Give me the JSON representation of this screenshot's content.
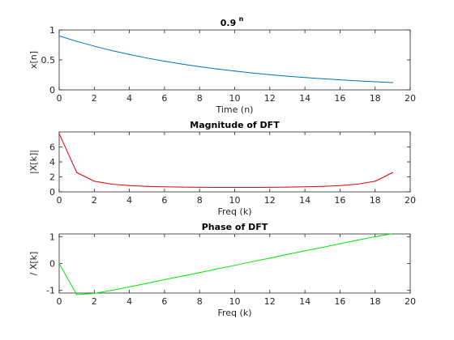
{
  "chart_data": [
    {
      "type": "line",
      "title": "0.9",
      "title_superscript": "n",
      "xlabel": "Time (n)",
      "ylabel": "x[n]",
      "xlim": [
        0,
        20
      ],
      "ylim": [
        0,
        1
      ],
      "xticks": [
        0,
        2,
        4,
        6,
        8,
        10,
        12,
        14,
        16,
        18,
        20
      ],
      "xtick_labels": [
        "0",
        "2",
        "4",
        "6",
        "8",
        "10",
        "12",
        "14",
        "16",
        "18",
        "20"
      ],
      "yticks": [
        0,
        0.5,
        1
      ],
      "ytick_labels": [
        "0",
        "0.5",
        "1"
      ],
      "grid": false,
      "series": [
        {
          "color": "#0072bd",
          "x": [
            0,
            1,
            2,
            3,
            4,
            5,
            6,
            7,
            8,
            9,
            10,
            11,
            12,
            13,
            14,
            15,
            16,
            17,
            18,
            19
          ],
          "y": [
            0.9,
            0.81,
            0.729,
            0.6561,
            0.5905,
            0.5314,
            0.4783,
            0.4305,
            0.3874,
            0.3487,
            0.3138,
            0.2824,
            0.2542,
            0.2288,
            0.2059,
            0.1853,
            0.1668,
            0.1501,
            0.1351,
            0.1216
          ]
        }
      ]
    },
    {
      "type": "line",
      "title": "Magnitude of DFT",
      "xlabel": "Freq (k)",
      "ylabel": "|X[k]|",
      "xlim": [
        0,
        20
      ],
      "ylim": [
        0,
        8
      ],
      "xticks": [
        0,
        2,
        4,
        6,
        8,
        10,
        12,
        14,
        16,
        18,
        20
      ],
      "xtick_labels": [
        "0",
        "2",
        "4",
        "6",
        "8",
        "10",
        "12",
        "14",
        "16",
        "18",
        "20"
      ],
      "yticks": [
        0,
        2,
        4,
        6
      ],
      "ytick_labels": [
        "0",
        "2",
        "4",
        "6"
      ],
      "grid": false,
      "series": [
        {
          "color": "#e8000b",
          "x": [
            0,
            1,
            2,
            3,
            4,
            5,
            6,
            7,
            8,
            9,
            10,
            11,
            12,
            13,
            14,
            15,
            16,
            17,
            18,
            19
          ],
          "y": [
            7.78,
            2.58,
            1.42,
            1.03,
            0.84,
            0.73,
            0.67,
            0.63,
            0.61,
            0.59,
            0.59,
            0.59,
            0.61,
            0.63,
            0.67,
            0.73,
            0.84,
            1.03,
            1.42,
            2.58
          ]
        }
      ]
    },
    {
      "type": "line",
      "title": "Phase of DFT",
      "xlabel": "Freq (k)",
      "ylabel": "/ X[k]",
      "xlim": [
        0,
        20
      ],
      "ylim": [
        -1.1,
        1.1
      ],
      "xticks": [
        0,
        2,
        4,
        6,
        8,
        10,
        12,
        14,
        16,
        18,
        20
      ],
      "xtick_labels": [
        "0",
        "2",
        "4",
        "6",
        "8",
        "10",
        "12",
        "14",
        "16",
        "18",
        "20"
      ],
      "yticks": [
        -1,
        0,
        1
      ],
      "ytick_labels": [
        "-1",
        "0",
        "1"
      ],
      "grid": false,
      "series": [
        {
          "color": "#00e600",
          "x": [
            0,
            1,
            2,
            3,
            4,
            5,
            6,
            7,
            8,
            9,
            10,
            11,
            12,
            13,
            14,
            15,
            16,
            17,
            18,
            19
          ],
          "y": [
            0,
            -1.16,
            -1.11,
            -1.0,
            -0.87,
            -0.74,
            -0.6,
            -0.47,
            -0.34,
            -0.2,
            -0.07,
            0.07,
            0.2,
            0.34,
            0.47,
            0.6,
            0.74,
            0.87,
            1.0,
            1.11
          ]
        }
      ]
    }
  ]
}
